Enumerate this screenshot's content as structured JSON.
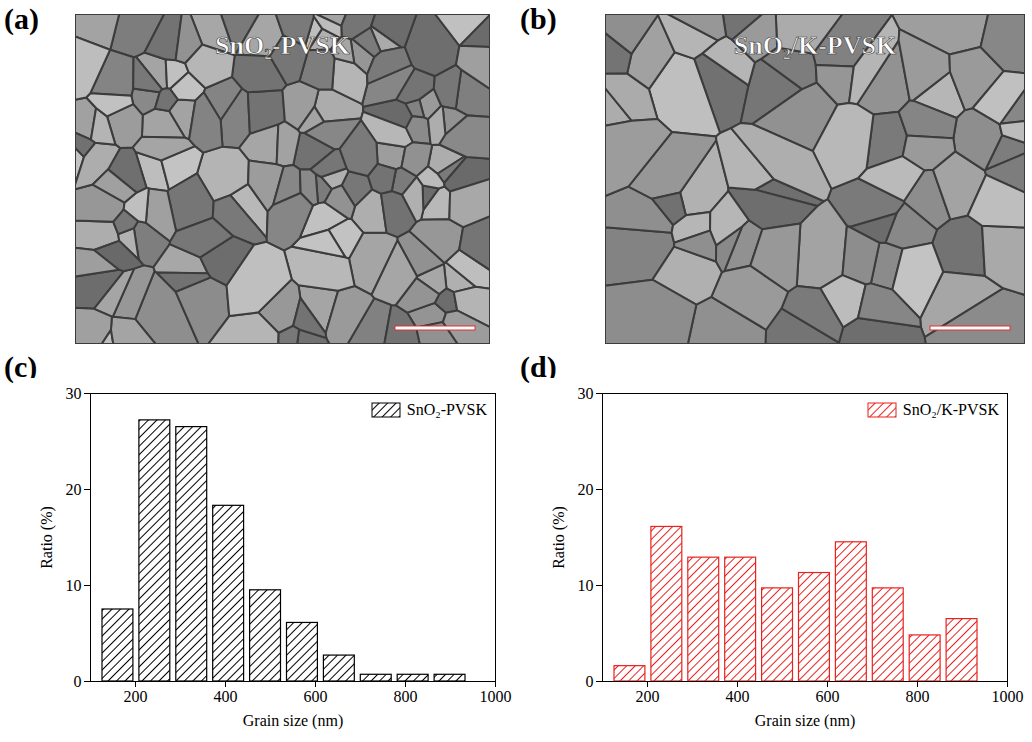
{
  "images": [
    {
      "label": "(a)",
      "title": "SnO₂-PVSK"
    },
    {
      "label": "(b)",
      "title": "SnO₂/K-PVSK"
    }
  ],
  "chart_data": [
    {
      "label": "(c)",
      "type": "histogram",
      "bins": [
        120,
        202,
        284,
        366,
        448,
        530,
        612,
        694,
        776,
        858,
        940
      ],
      "series": [
        {
          "name": "SnO₂-PVSK",
          "color": "#000000",
          "values": [
            7.5,
            27.2,
            26.5,
            18.3,
            9.5,
            6.1,
            2.7,
            0.7,
            0.7,
            0.7
          ]
        }
      ],
      "xlabel": "Grain size (nm)",
      "ylabel": "Ratio (%)",
      "xlim": [
        100,
        1000
      ],
      "xticks": [
        200,
        400,
        600,
        800,
        1000
      ],
      "ylim": [
        0,
        30
      ],
      "yticks": [
        0,
        10,
        20,
        30
      ],
      "legend": "upper right"
    },
    {
      "label": "(d)",
      "type": "histogram",
      "bins": [
        120,
        202,
        284,
        366,
        448,
        530,
        612,
        694,
        776,
        858,
        940
      ],
      "series": [
        {
          "name": "SnO₂/K-PVSK",
          "color": "#e8221f",
          "values": [
            1.6,
            16.1,
            12.9,
            12.9,
            9.7,
            11.3,
            14.5,
            9.7,
            4.8,
            6.5
          ]
        }
      ],
      "xlabel": "Grain size (nm)",
      "ylabel": "Ratio (%)",
      "xlim": [
        100,
        1000
      ],
      "xticks": [
        200,
        400,
        600,
        800,
        1000
      ],
      "ylim": [
        0,
        30
      ],
      "yticks": [
        0,
        10,
        20,
        30
      ],
      "legend": "upper right"
    }
  ]
}
